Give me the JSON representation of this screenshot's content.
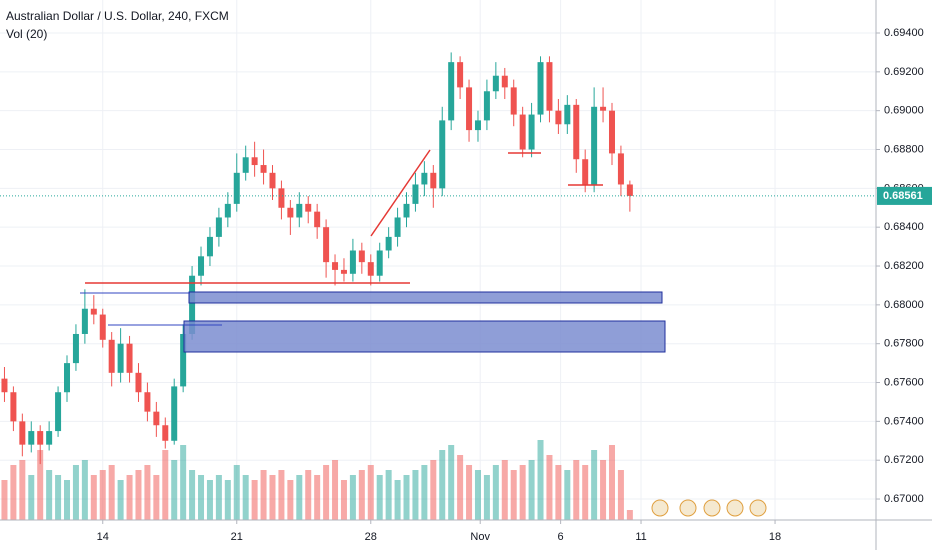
{
  "chart_data": {
    "type": "candlestick",
    "title": "Australian Dollar / U.S. Dollar, 240, FXCM",
    "subtitle": "Vol (20)",
    "x": [
      1,
      3,
      5,
      7,
      9,
      11,
      13,
      15,
      17,
      19,
      21,
      23,
      25,
      27,
      29,
      31,
      33,
      35,
      37,
      39,
      41,
      43,
      45,
      47,
      49,
      51,
      53,
      55,
      57,
      59,
      61,
      63,
      65,
      67,
      69,
      71,
      73,
      75,
      77,
      79,
      81,
      83,
      85,
      87,
      89,
      91,
      93,
      95,
      97,
      99,
      101,
      103,
      105,
      107,
      109,
      111,
      113,
      115,
      117,
      119,
      121,
      123,
      125,
      127,
      129,
      131,
      133,
      135,
      137,
      139,
      141
    ],
    "candles": [
      [
        0.6762,
        0.6768,
        0.675,
        0.6755
      ],
      [
        0.6755,
        0.6758,
        0.6735,
        0.674
      ],
      [
        0.674,
        0.6744,
        0.6722,
        0.6728
      ],
      [
        0.6728,
        0.674,
        0.6724,
        0.6735
      ],
      [
        0.6735,
        0.6738,
        0.6718,
        0.6728
      ],
      [
        0.6728,
        0.674,
        0.6725,
        0.6735
      ],
      [
        0.6735,
        0.6758,
        0.6732,
        0.6755
      ],
      [
        0.6755,
        0.6774,
        0.675,
        0.677
      ],
      [
        0.677,
        0.679,
        0.6766,
        0.6785
      ],
      [
        0.6785,
        0.6808,
        0.678,
        0.6798
      ],
      [
        0.6798,
        0.6805,
        0.679,
        0.6795
      ],
      [
        0.6795,
        0.6798,
        0.6778,
        0.6782
      ],
      [
        0.6782,
        0.6786,
        0.6758,
        0.6765
      ],
      [
        0.6765,
        0.6788,
        0.676,
        0.678
      ],
      [
        0.678,
        0.6784,
        0.676,
        0.6765
      ],
      [
        0.6765,
        0.677,
        0.675,
        0.6755
      ],
      [
        0.6755,
        0.676,
        0.674,
        0.6745
      ],
      [
        0.6745,
        0.675,
        0.6732,
        0.6738
      ],
      [
        0.6738,
        0.6742,
        0.6726,
        0.673
      ],
      [
        0.673,
        0.6762,
        0.6728,
        0.6758
      ],
      [
        0.6758,
        0.679,
        0.6755,
        0.6785
      ],
      [
        0.6785,
        0.682,
        0.6782,
        0.6815
      ],
      [
        0.6815,
        0.683,
        0.681,
        0.6825
      ],
      [
        0.6825,
        0.684,
        0.682,
        0.6835
      ],
      [
        0.6835,
        0.685,
        0.683,
        0.6845
      ],
      [
        0.6845,
        0.6858,
        0.684,
        0.6852
      ],
      [
        0.6852,
        0.6878,
        0.6848,
        0.6868
      ],
      [
        0.6868,
        0.6882,
        0.6864,
        0.6876
      ],
      [
        0.6876,
        0.6884,
        0.6866,
        0.6872
      ],
      [
        0.6872,
        0.688,
        0.6862,
        0.6868
      ],
      [
        0.6868,
        0.6872,
        0.6854,
        0.686
      ],
      [
        0.686,
        0.6864,
        0.6844,
        0.685
      ],
      [
        0.685,
        0.6854,
        0.6836,
        0.6845
      ],
      [
        0.6845,
        0.6858,
        0.684,
        0.6852
      ],
      [
        0.6852,
        0.6856,
        0.6842,
        0.6848
      ],
      [
        0.6848,
        0.6852,
        0.6834,
        0.684
      ],
      [
        0.684,
        0.6844,
        0.6814,
        0.6822
      ],
      [
        0.6822,
        0.6826,
        0.681,
        0.6818
      ],
      [
        0.6818,
        0.6824,
        0.6812,
        0.6816
      ],
      [
        0.6816,
        0.6834,
        0.6812,
        0.6828
      ],
      [
        0.6828,
        0.6832,
        0.6816,
        0.6822
      ],
      [
        0.6822,
        0.6826,
        0.681,
        0.6815
      ],
      [
        0.6815,
        0.6832,
        0.6812,
        0.6828
      ],
      [
        0.6828,
        0.684,
        0.6824,
        0.6835
      ],
      [
        0.6835,
        0.685,
        0.683,
        0.6845
      ],
      [
        0.6845,
        0.6858,
        0.684,
        0.6852
      ],
      [
        0.6852,
        0.6868,
        0.6848,
        0.6862
      ],
      [
        0.6862,
        0.6874,
        0.6856,
        0.6868
      ],
      [
        0.6868,
        0.6872,
        0.685,
        0.686
      ],
      [
        0.686,
        0.6902,
        0.6856,
        0.6895
      ],
      [
        0.6895,
        0.693,
        0.689,
        0.6925
      ],
      [
        0.6925,
        0.6928,
        0.6906,
        0.6912
      ],
      [
        0.6912,
        0.6916,
        0.6884,
        0.689
      ],
      [
        0.689,
        0.69,
        0.6884,
        0.6895
      ],
      [
        0.6895,
        0.6916,
        0.689,
        0.691
      ],
      [
        0.691,
        0.6925,
        0.6906,
        0.6918
      ],
      [
        0.6918,
        0.6922,
        0.6906,
        0.6912
      ],
      [
        0.6912,
        0.6916,
        0.6892,
        0.6898
      ],
      [
        0.6898,
        0.6902,
        0.6876,
        0.688
      ],
      [
        0.688,
        0.6904,
        0.6876,
        0.6898
      ],
      [
        0.6898,
        0.6928,
        0.6894,
        0.6925
      ],
      [
        0.6925,
        0.6928,
        0.6894,
        0.69
      ],
      [
        0.69,
        0.6906,
        0.6888,
        0.6893
      ],
      [
        0.6893,
        0.6908,
        0.6888,
        0.6903
      ],
      [
        0.6903,
        0.6906,
        0.6868,
        0.6875
      ],
      [
        0.6875,
        0.688,
        0.6858,
        0.6862
      ],
      [
        0.6862,
        0.6912,
        0.6858,
        0.6902
      ],
      [
        0.6902,
        0.6912,
        0.6894,
        0.69
      ],
      [
        0.69,
        0.6904,
        0.6872,
        0.6878
      ],
      [
        0.6878,
        0.6882,
        0.6856,
        0.6862
      ],
      [
        0.6862,
        0.6864,
        0.6848,
        0.68561
      ]
    ],
    "volume": [
      40,
      55,
      60,
      45,
      70,
      50,
      45,
      40,
      55,
      60,
      45,
      50,
      55,
      40,
      45,
      50,
      55,
      45,
      70,
      60,
      75,
      50,
      45,
      40,
      45,
      40,
      55,
      45,
      40,
      50,
      45,
      50,
      40,
      45,
      50,
      45,
      55,
      60,
      40,
      45,
      50,
      55,
      45,
      50,
      40,
      45,
      50,
      55,
      60,
      70,
      75,
      65,
      55,
      50,
      45,
      55,
      60,
      50,
      55,
      60,
      80,
      65,
      55,
      50,
      60,
      55,
      70,
      60,
      75,
      50,
      10
    ],
    "volume_ylim": [
      0,
      520
    ],
    "up_color": "#26a69a",
    "down_color": "#ef5350",
    "last_price_label": "0.68561",
    "xlim": [
      0,
      196.1
    ],
    "xticks": [
      {
        "value": 23,
        "label": "14"
      },
      {
        "value": 53,
        "label": "21"
      },
      {
        "value": 83,
        "label": "28"
      },
      {
        "value": 107.5,
        "label": "Nov"
      },
      {
        "value": 125.5,
        "label": "6"
      },
      {
        "value": 143.5,
        "label": "11"
      },
      {
        "value": 173.5,
        "label": "18"
      }
    ],
    "ylim": [
      0.66892,
      0.6957
    ],
    "yticks": [
      {
        "value": 0.67,
        "label": "0.67000"
      },
      {
        "value": 0.672,
        "label": "0.67200"
      },
      {
        "value": 0.674,
        "label": "0.67400"
      },
      {
        "value": 0.676,
        "label": "0.67600"
      },
      {
        "value": 0.678,
        "label": "0.67800"
      },
      {
        "value": 0.68,
        "label": "0.68000"
      },
      {
        "value": 0.682,
        "label": "0.68200"
      },
      {
        "value": 0.684,
        "label": "0.68400"
      },
      {
        "value": 0.686,
        "label": "0.68600"
      },
      {
        "value": 0.688,
        "label": "0.68800"
      },
      {
        "value": 0.69,
        "label": "0.69000"
      },
      {
        "value": 0.692,
        "label": "0.69200"
      },
      {
        "value": 0.694,
        "label": "0.69400"
      }
    ],
    "grid": true
  }
}
